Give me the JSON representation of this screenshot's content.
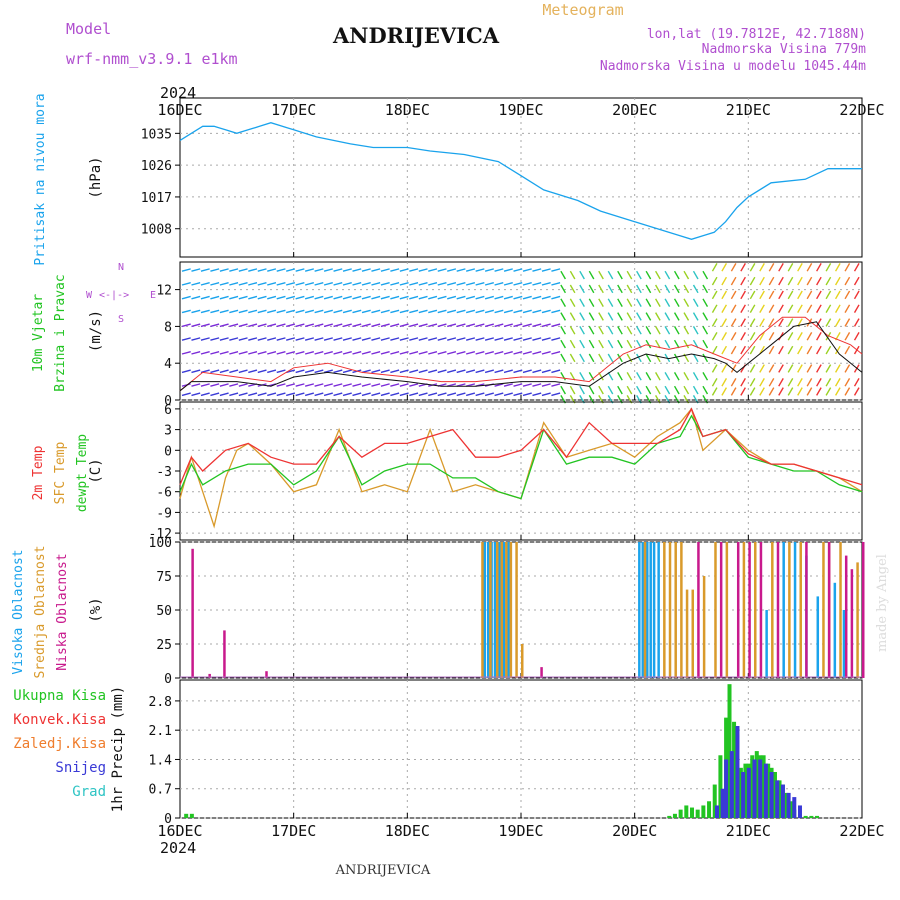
{
  "header": {
    "model_label": "Model",
    "model_name": "wrf-nmm_v3.9.1 e1km",
    "location": "ANDRIJEVICA",
    "product": "Meteogram",
    "lonlat": "lon,lat (19.7812E, 42.7188N)",
    "elevation": "Nadmorska Visina 779m",
    "model_elevation": "Nadmorska Visina u modelu 1045.44m",
    "year_top": "2024",
    "year_bottom": "2024",
    "footer": "ANDRIJEVICA",
    "credit": "made by Angel"
  },
  "colors": {
    "pressure": "#1aa3ec",
    "temp": "#ee3333",
    "sfc_temp": "#d99a2b",
    "dewpt": "#22c422",
    "high_cloud": "#1aa3ec",
    "mid_cloud": "#d99a2b",
    "low_cloud": "#c8198c",
    "total_precip": "#22c422",
    "conv_precip": "#ee3333",
    "frz_precip": "#ef7d2d",
    "snow": "#3a3ad6",
    "hail": "#2ec4c4",
    "purple_text": "#b04fcf",
    "meteogram_text": "#e4b25c"
  },
  "chart_data": [
    {
      "type": "line",
      "id": "pressure",
      "ylabel": "(hPa)",
      "side_labels": [
        "Pritisak na nivou mora"
      ],
      "categories": [
        "16DEC",
        "17DEC",
        "18DEC",
        "19DEC",
        "20DEC",
        "21DEC",
        "22DEC"
      ],
      "yticks": [
        1008,
        1017,
        1026,
        1035
      ],
      "ylim": [
        1000,
        1045
      ],
      "series": [
        {
          "x": [
            0,
            0.1,
            0.2,
            0.3,
            0.4,
            0.5,
            0.6,
            0.7,
            0.8,
            0.9,
            1.0,
            1.2,
            1.5,
            1.7,
            2.0,
            2.2,
            2.5,
            2.8,
            3.0,
            3.2,
            3.5,
            3.7,
            4.0,
            4.2,
            4.4,
            4.5,
            4.6,
            4.7,
            4.8,
            4.9,
            5.0,
            5.2,
            5.5,
            5.7,
            6.0
          ],
          "values": [
            1033,
            1035,
            1037,
            1037,
            1036,
            1035,
            1036,
            1037,
            1038,
            1037,
            1036,
            1034,
            1032,
            1031,
            1031,
            1030,
            1029,
            1027,
            1023,
            1019,
            1016,
            1013,
            1010,
            1008,
            1006,
            1005,
            1006,
            1007,
            1010,
            1014,
            1017,
            1021,
            1022,
            1025,
            1025
          ]
        }
      ]
    },
    {
      "type": "line",
      "id": "wind",
      "ylabel": "(m/s)",
      "side_labels": [
        "10m Vjetar",
        "Brzina i Pravac"
      ],
      "compass": {
        "n": "N",
        "w": "W",
        "e": "E",
        "s": "S",
        "arrows": "<-|->"
      },
      "yticks": [
        0,
        4,
        8,
        12
      ],
      "ylim": [
        0,
        15
      ],
      "series": [
        {
          "name": "speed",
          "x": [
            0,
            0.1,
            0.3,
            0.5,
            0.8,
            1.0,
            1.3,
            1.6,
            2.0,
            2.3,
            2.6,
            3.0,
            3.3,
            3.6,
            3.9,
            4.1,
            4.3,
            4.5,
            4.7,
            4.8,
            4.9,
            5.0,
            5.2,
            5.4,
            5.6,
            5.8,
            6.0
          ],
          "values": [
            1,
            2,
            2,
            2,
            1.5,
            2.5,
            3,
            2.5,
            2,
            1.5,
            1.5,
            2,
            2,
            1.5,
            4,
            5,
            4.5,
            5,
            4.5,
            4,
            3,
            4,
            6,
            8,
            8.5,
            5,
            3
          ]
        },
        {
          "name": "gust",
          "x": [
            0,
            0.2,
            0.5,
            0.8,
            1.0,
            1.3,
            1.6,
            2.0,
            2.3,
            2.6,
            3.0,
            3.3,
            3.6,
            3.9,
            4.1,
            4.3,
            4.5,
            4.7,
            4.9,
            5.1,
            5.3,
            5.5,
            5.7,
            5.9,
            6.0
          ],
          "values": [
            1,
            3,
            2.5,
            2,
            3.5,
            4,
            3,
            2.5,
            2,
            2,
            2.5,
            2.5,
            2,
            5,
            6,
            5.5,
            6,
            5,
            4,
            7,
            9,
            9,
            7,
            6,
            5
          ]
        }
      ]
    },
    {
      "type": "line",
      "id": "temperature",
      "ylabel": "(C)",
      "side_labels": [
        "2m Temp",
        "SFC Temp",
        "dewpt Temp"
      ],
      "yticks": [
        -12,
        -9,
        -6,
        -3,
        0,
        3,
        6
      ],
      "ylim": [
        -13,
        7
      ],
      "series": [
        {
          "name": "2m Temp",
          "x": [
            0,
            0.1,
            0.2,
            0.4,
            0.6,
            0.8,
            1.0,
            1.2,
            1.4,
            1.6,
            1.8,
            2.0,
            2.2,
            2.4,
            2.6,
            2.8,
            3.0,
            3.2,
            3.4,
            3.6,
            3.8,
            4.0,
            4.2,
            4.4,
            4.5,
            4.6,
            4.8,
            5.0,
            5.2,
            5.4,
            5.6,
            5.8,
            6.0
          ],
          "values": [
            -5,
            -1,
            -3,
            0,
            1,
            -1,
            -2,
            -2,
            2,
            -1,
            1,
            1,
            2,
            3,
            -1,
            -1,
            0,
            3,
            -1,
            4,
            1,
            1,
            1,
            3,
            6,
            2,
            3,
            -0.5,
            -2,
            -2,
            -3,
            -4,
            -5
          ]
        },
        {
          "name": "SFC Temp",
          "x": [
            0,
            0.1,
            0.2,
            0.3,
            0.4,
            0.5,
            0.6,
            0.8,
            1.0,
            1.2,
            1.4,
            1.6,
            1.8,
            2.0,
            2.2,
            2.4,
            2.6,
            2.8,
            3.0,
            3.2,
            3.4,
            3.6,
            3.8,
            4.0,
            4.2,
            4.4,
            4.5,
            4.6,
            4.8,
            5.0,
            5.2,
            5.4,
            5.6,
            5.8,
            6.0
          ],
          "values": [
            -7,
            -1,
            -6,
            -11,
            -4,
            0,
            1,
            -2,
            -6,
            -5,
            3,
            -6,
            -5,
            -6,
            3,
            -6,
            -5,
            -6,
            -7,
            4,
            -1,
            0,
            1,
            -1,
            2,
            4,
            6,
            0,
            3,
            0,
            -2,
            -2,
            -3,
            -4,
            -6
          ]
        },
        {
          "name": "dewpt Temp",
          "x": [
            0,
            0.1,
            0.2,
            0.4,
            0.6,
            0.8,
            1.0,
            1.2,
            1.4,
            1.6,
            1.8,
            2.0,
            2.2,
            2.4,
            2.6,
            2.8,
            3.0,
            3.2,
            3.4,
            3.6,
            3.8,
            4.0,
            4.2,
            4.4,
            4.5,
            4.6,
            4.8,
            5.0,
            5.2,
            5.4,
            5.6,
            5.8,
            6.0
          ],
          "values": [
            -6,
            -2,
            -5,
            -3,
            -2,
            -2,
            -5,
            -3,
            2,
            -5,
            -3,
            -2,
            -2,
            -4,
            -4,
            -6,
            -7,
            3,
            -2,
            -1,
            -1,
            -2,
            1,
            2,
            5,
            2,
            3,
            -1,
            -2,
            -3,
            -3,
            -5,
            -6
          ]
        }
      ]
    },
    {
      "type": "bar",
      "id": "cloud",
      "ylabel": "(%)",
      "side_labels": [
        "Visoka Oblacnost",
        "Srednja Oblacnost",
        "Niska Oblacnost"
      ],
      "yticks": [
        0,
        25,
        50,
        75,
        100
      ],
      "ylim": [
        0,
        100
      ],
      "series": [
        {
          "name": "Visoka Oblacnost",
          "x": [
            2.67,
            2.7,
            2.73,
            2.76,
            2.8,
            2.84,
            2.88,
            4.03,
            4.06,
            4.1,
            4.13,
            4.16,
            4.2,
            5.15,
            5.3,
            5.4,
            5.5,
            5.6,
            5.75,
            5.83
          ],
          "values": [
            100,
            100,
            100,
            100,
            100,
            100,
            100,
            100,
            100,
            100,
            100,
            100,
            100,
            50,
            100,
            100,
            90,
            60,
            70,
            50
          ]
        },
        {
          "name": "Srednja Oblacnost",
          "x": [
            2.65,
            2.72,
            2.78,
            2.82,
            2.86,
            2.9,
            2.95,
            3.0,
            4.08,
            4.25,
            4.3,
            4.35,
            4.4,
            4.45,
            4.5,
            4.6,
            4.7,
            4.8,
            4.95,
            5.05,
            5.2,
            5.35,
            5.45,
            5.65,
            5.7,
            5.8,
            5.95
          ],
          "values": [
            100,
            100,
            100,
            100,
            100,
            100,
            100,
            25,
            100,
            100,
            100,
            100,
            100,
            65,
            65,
            75,
            100,
            100,
            100,
            100,
            100,
            100,
            100,
            100,
            100,
            100,
            85
          ]
        },
        {
          "name": "Niska Oblacnost",
          "x": [
            0.1,
            0.25,
            0.38,
            0.75,
            3.17,
            4.55,
            4.75,
            4.9,
            5.0,
            5.1,
            5.25,
            5.5,
            5.7,
            5.85,
            5.9,
            6.0
          ],
          "values": [
            95,
            3,
            35,
            5,
            8,
            100,
            100,
            100,
            100,
            100,
            100,
            100,
            100,
            90,
            80,
            100
          ]
        }
      ]
    },
    {
      "type": "bar",
      "id": "precip",
      "ylabel": "1hr Precip (mm)",
      "side_labels": [
        "Ukupna Kisa",
        "Konvek.Kisa",
        "Zaledj.Kisa",
        "Snijeg",
        "Grad"
      ],
      "yticks": [
        0,
        0.7,
        1.4,
        2.1,
        2.8
      ],
      "ylim": [
        0,
        3.3
      ],
      "series": [
        {
          "name": "Ukupna Kisa",
          "x": [
            0.05,
            0.1,
            4.3,
            4.35,
            4.4,
            4.45,
            4.5,
            4.55,
            4.6,
            4.65,
            4.7,
            4.75,
            4.8,
            4.83,
            4.87,
            4.9,
            4.93,
            4.97,
            5.0,
            5.03,
            5.07,
            5.1,
            5.13,
            5.17,
            5.2,
            5.23,
            5.27,
            5.3,
            5.33,
            5.37,
            5.4,
            5.45,
            5.5,
            5.55,
            5.6
          ],
          "values": [
            0.1,
            0.1,
            0.05,
            0.1,
            0.2,
            0.3,
            0.25,
            0.2,
            0.3,
            0.4,
            0.8,
            1.5,
            2.4,
            3.2,
            2.3,
            2.0,
            1.2,
            1.3,
            1.3,
            1.5,
            1.6,
            1.5,
            1.5,
            1.3,
            1.2,
            1.1,
            0.9,
            0.8,
            0.6,
            0.4,
            0.2,
            0.1,
            0.05,
            0.05,
            0.05
          ]
        },
        {
          "name": "Snijeg",
          "x": [
            4.72,
            4.77,
            4.8,
            4.85,
            4.9,
            4.95,
            5.0,
            5.05,
            5.1,
            5.15,
            5.2,
            5.25,
            5.3,
            5.35,
            5.4,
            5.45
          ],
          "values": [
            0.3,
            0.7,
            1.4,
            1.6,
            2.2,
            1.1,
            1.2,
            1.4,
            1.4,
            1.3,
            1.1,
            0.9,
            0.8,
            0.6,
            0.5,
            0.3
          ]
        }
      ]
    }
  ],
  "x_axis": {
    "categories": [
      "16DEC",
      "17DEC",
      "18DEC",
      "19DEC",
      "20DEC",
      "21DEC",
      "22DEC"
    ]
  }
}
